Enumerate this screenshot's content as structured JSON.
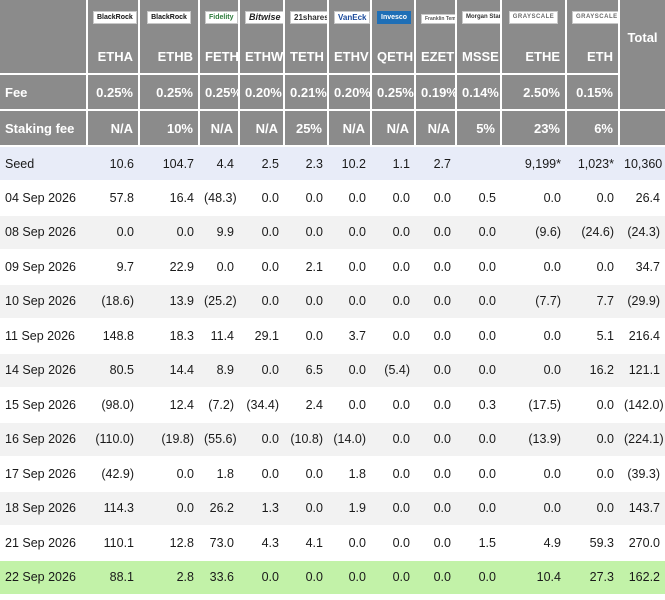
{
  "chart_data": {
    "type": "table",
    "issuers": [
      "BlackRock",
      "BlackRock",
      "Fidelity",
      "Bitwise",
      "21shares",
      "VanEck",
      "Invesco",
      "Franklin Templeton",
      "Morgan Stanley",
      "GRAYSCALE",
      "GRAYSCALE"
    ],
    "columns": [
      "ETHA",
      "ETHB",
      "FETH",
      "ETHW",
      "TETH",
      "ETHV",
      "QETH",
      "EZET",
      "MSSE",
      "ETHE",
      "ETH",
      "Total"
    ],
    "fee_label": "Fee",
    "fees": [
      "0.25%",
      "0.25%",
      "0.25%",
      "0.20%",
      "0.21%",
      "0.20%",
      "0.25%",
      "0.19%",
      "0.14%",
      "2.50%",
      "0.15%"
    ],
    "staking_label": "Staking fee",
    "staking_fees": [
      "N/A",
      "10%",
      "N/A",
      "N/A",
      "25%",
      "N/A",
      "N/A",
      "N/A",
      "5%",
      "23%",
      "6%"
    ],
    "rows": [
      {
        "label": "Seed",
        "values": [
          "10.6",
          "104.7",
          "4.4",
          "2.5",
          "2.3",
          "10.2",
          "1.1",
          "2.7",
          "",
          "9,199*",
          "1,023*",
          "10,360"
        ]
      },
      {
        "label": "04 Sep 2026",
        "values": [
          "57.8",
          "16.4",
          "(48.3)",
          "0.0",
          "0.0",
          "0.0",
          "0.0",
          "0.0",
          "0.5",
          "0.0",
          "0.0",
          "26.4"
        ]
      },
      {
        "label": "08 Sep 2026",
        "values": [
          "0.0",
          "0.0",
          "9.9",
          "0.0",
          "0.0",
          "0.0",
          "0.0",
          "0.0",
          "0.0",
          "(9.6)",
          "(24.6)",
          "(24.3)"
        ]
      },
      {
        "label": "09 Sep 2026",
        "values": [
          "9.7",
          "22.9",
          "0.0",
          "0.0",
          "2.1",
          "0.0",
          "0.0",
          "0.0",
          "0.0",
          "0.0",
          "0.0",
          "34.7"
        ]
      },
      {
        "label": "10 Sep 2026",
        "values": [
          "(18.6)",
          "13.9",
          "(25.2)",
          "0.0",
          "0.0",
          "0.0",
          "0.0",
          "0.0",
          "0.0",
          "(7.7)",
          "7.7",
          "(29.9)"
        ]
      },
      {
        "label": "11 Sep 2026",
        "values": [
          "148.8",
          "18.3",
          "11.4",
          "29.1",
          "0.0",
          "3.7",
          "0.0",
          "0.0",
          "0.0",
          "0.0",
          "5.1",
          "216.4"
        ]
      },
      {
        "label": "14 Sep 2026",
        "values": [
          "80.5",
          "14.4",
          "8.9",
          "0.0",
          "6.5",
          "0.0",
          "(5.4)",
          "0.0",
          "0.0",
          "0.0",
          "16.2",
          "121.1"
        ]
      },
      {
        "label": "15 Sep 2026",
        "values": [
          "(98.0)",
          "12.4",
          "(7.2)",
          "(34.4)",
          "2.4",
          "0.0",
          "0.0",
          "0.0",
          "0.3",
          "(17.5)",
          "0.0",
          "(142.0)"
        ]
      },
      {
        "label": "16 Sep 2026",
        "values": [
          "(110.0)",
          "(19.8)",
          "(55.6)",
          "0.0",
          "(10.8)",
          "(14.0)",
          "0.0",
          "0.0",
          "0.0",
          "(13.9)",
          "0.0",
          "(224.1)"
        ]
      },
      {
        "label": "17 Sep 2026",
        "values": [
          "(42.9)",
          "0.0",
          "1.8",
          "0.0",
          "0.0",
          "1.8",
          "0.0",
          "0.0",
          "0.0",
          "0.0",
          "0.0",
          "(39.3)"
        ]
      },
      {
        "label": "18 Sep 2026",
        "values": [
          "114.3",
          "0.0",
          "26.2",
          "1.3",
          "0.0",
          "1.9",
          "0.0",
          "0.0",
          "0.0",
          "0.0",
          "0.0",
          "143.7"
        ]
      },
      {
        "label": "21 Sep 2026",
        "values": [
          "110.1",
          "12.8",
          "73.0",
          "4.3",
          "4.1",
          "0.0",
          "0.0",
          "0.0",
          "1.5",
          "4.9",
          "59.3",
          "270.0"
        ]
      },
      {
        "label": "22 Sep 2026",
        "values": [
          "88.1",
          "2.8",
          "33.6",
          "0.0",
          "0.0",
          "0.0",
          "0.0",
          "0.0",
          "0.0",
          "10.4",
          "27.3",
          "162.2"
        ]
      }
    ],
    "colors": {
      "header_bg": "#8b8b8b",
      "header_text": "#ffffff",
      "negative": "#d2453f",
      "zero": "#c6c6c6",
      "seed_bg": "#e8ecf8",
      "alt_bg": "#f2f2f2",
      "latest_bg": "#c2f2a8"
    }
  }
}
